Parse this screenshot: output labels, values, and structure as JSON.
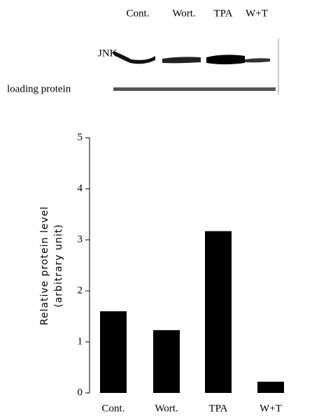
{
  "blot": {
    "lanes": [
      "Cont.",
      "Wort.",
      "TPA",
      "W+T"
    ],
    "rows": [
      "JNK",
      "loading protein"
    ]
  },
  "chart_data": {
    "type": "bar",
    "y_label": [
      "Relative protein level",
      "(arbitrary unit)"
    ],
    "categories": [
      "Cont.",
      "Wort.",
      "TPA",
      "W+T"
    ],
    "values": [
      1.6,
      1.23,
      3.17,
      0.22
    ],
    "color": "#000000",
    "ylim": [
      0,
      5
    ],
    "yticks": [
      0,
      1,
      2,
      3,
      4,
      5
    ],
    "grid": false
  }
}
